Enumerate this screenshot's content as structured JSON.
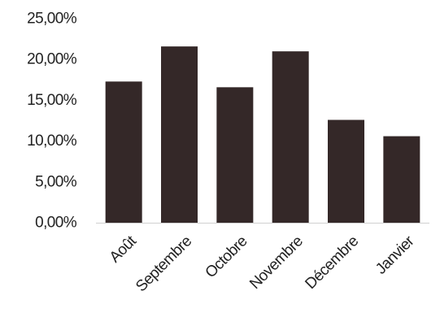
{
  "chart_data": {
    "type": "bar",
    "title": "",
    "xlabel": "",
    "ylabel": "",
    "categories": [
      "Août",
      "Septembre",
      "Octobre",
      "Novembre",
      "Décembre",
      "Janvier"
    ],
    "values": [
      17.3,
      21.6,
      16.6,
      21.0,
      12.6,
      10.6
    ],
    "ylim": [
      0,
      25
    ],
    "y_ticks": [
      0,
      5,
      10,
      15,
      20,
      25
    ],
    "y_tick_labels": [
      "0,00%",
      "5,00%",
      "10,00%",
      "15,00%",
      "20,00%",
      "25,00%"
    ],
    "grid": false,
    "legend": "none",
    "bar_color": "#342828"
  }
}
